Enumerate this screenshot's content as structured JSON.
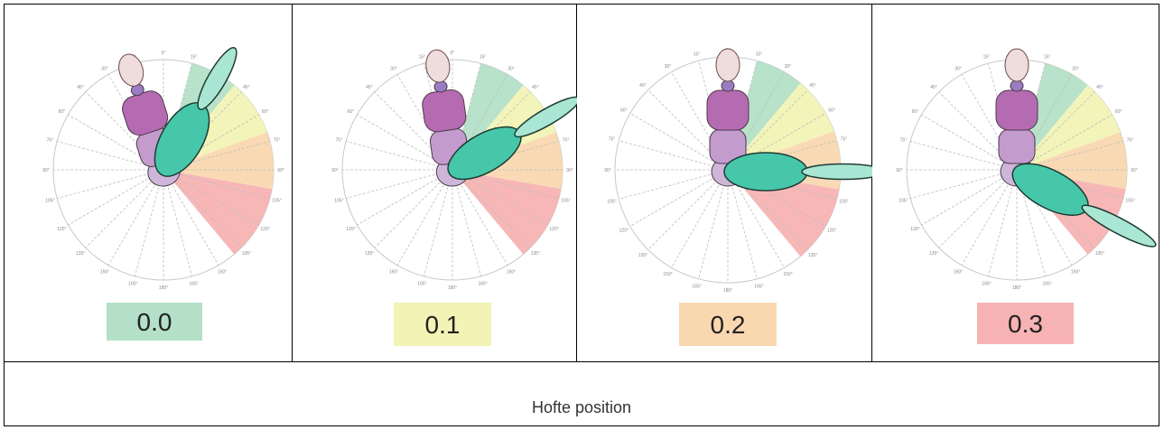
{
  "panels": [
    {
      "score": "0.0",
      "color": "#b4e0c7"
    },
    {
      "score": "0.1",
      "color": "#f2f3b5"
    },
    {
      "score": "0.2",
      "color": "#f9d8b0"
    },
    {
      "score": "0.3",
      "color": "#f7b3b3"
    }
  ],
  "zone_colors": {
    "green": "#b4e0c7",
    "yellow": "#f2f3b5",
    "orange": "#f9d8b0",
    "red": "#f7b3b3"
  },
  "angle_ticks": [
    "0°",
    "15°",
    "30°",
    "45°",
    "60°",
    "75°",
    "90°",
    "105°",
    "120°",
    "135°",
    "150°",
    "165°",
    "180°"
  ],
  "caption": "Hofte position"
}
